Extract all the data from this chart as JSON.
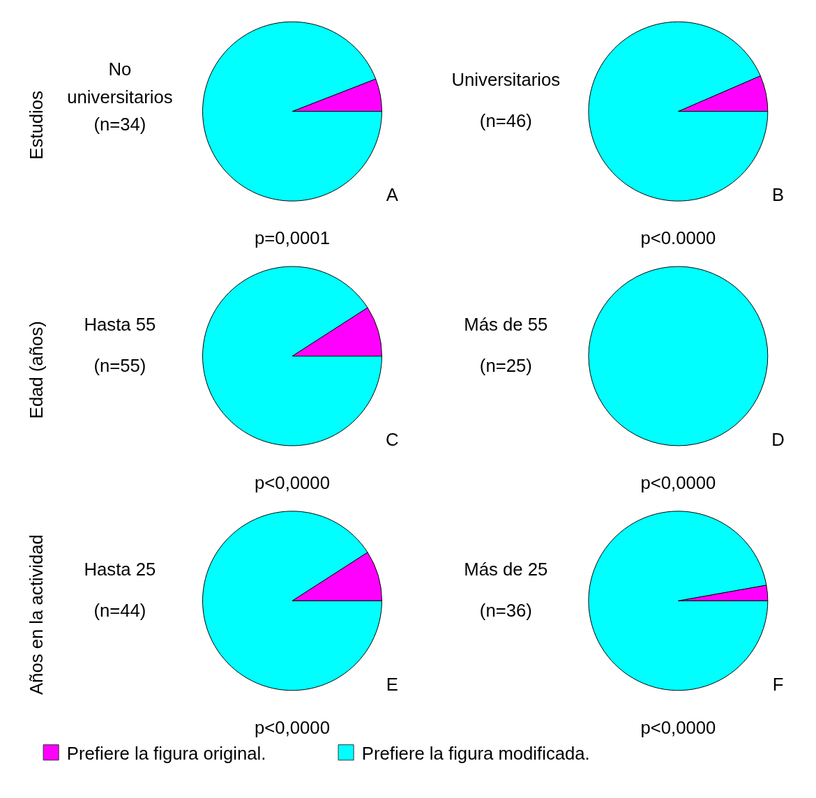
{
  "chart_data": [
    {
      "type": "pie",
      "ylabel": "Estudios",
      "categories": [
        null,
        null
      ],
      "values": [
        5.9,
        94.1
      ],
      "colors": [
        "#ff00ff",
        "#00ffff"
      ],
      "annotations": [
        "No universitarios",
        "(n=34)",
        "A",
        "p=0,0001"
      ]
    },
    {
      "type": "pie",
      "categories": [
        null,
        null
      ],
      "values": [
        6.5,
        93.5
      ],
      "colors": [
        "#ff00ff",
        "#00ffff"
      ],
      "annotations": [
        "Universitarios",
        "(n=46)",
        "B",
        "p<0.0000"
      ]
    },
    {
      "type": "pie",
      "ylabel": "Edad (años)",
      "categories": [
        null,
        null
      ],
      "values": [
        9.1,
        90.9
      ],
      "colors": [
        "#ff00ff",
        "#00ffff"
      ],
      "annotations": [
        "Hasta 55",
        "(n=55)",
        "C",
        "p<0,0000"
      ]
    },
    {
      "type": "pie",
      "categories": [
        null,
        null
      ],
      "values": [
        0,
        100
      ],
      "colors": [
        "#ff00ff",
        "#00ffff"
      ],
      "annotations": [
        "Más de 55",
        "(n=25)",
        "D",
        "p<0,0000"
      ]
    },
    {
      "type": "pie",
      "ylabel": "Años en la actividad",
      "categories": [
        null,
        null
      ],
      "values": [
        9.1,
        90.9
      ],
      "colors": [
        "#ff00ff",
        "#00ffff"
      ],
      "annotations": [
        "Hasta 25",
        "(n=44)",
        "E",
        "p<0,0000"
      ]
    },
    {
      "type": "pie",
      "legend": "bottom",
      "categories": [
        "Prefiere la figura original.",
        "Prefiere la figura modificada."
      ],
      "values": [
        2.8,
        97.2
      ],
      "colors": [
        "#ff00ff",
        "#00ffff"
      ],
      "annotations": [
        "Más de 25",
        "(n=36)",
        "F",
        "p<0,0000"
      ]
    }
  ]
}
